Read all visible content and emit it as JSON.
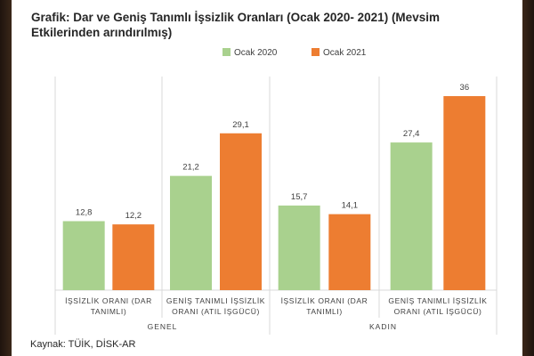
{
  "title": "Grafik: Dar ve Geniş Tanımlı İşsizlik Oranları (Ocak 2020- 2021) (Mevsim Etkilerinden arındırılmış)",
  "source": "Kaynak: TÜİK, DİSK-AR",
  "colors": {
    "series1": "#a9d18e",
    "series2": "#ed7d31",
    "label": "#404040",
    "grid": "#d9d9d9"
  },
  "chart_data": {
    "type": "bar",
    "groups": [
      {
        "label": "GENEL",
        "categories": [
          [
            "İŞSİZLİK ORANI (DAR",
            "TANIMLI)"
          ],
          [
            "GENİŞ TANIMLI İŞSİZLİK",
            "ORANI (ATIL İŞGÜCÜ)"
          ]
        ]
      },
      {
        "label": "KADIN",
        "categories": [
          [
            "İŞSİZLİK ORANI (DAR",
            "TANIMLI)"
          ],
          [
            "GENİŞ TANIMLI İŞSİZLİK",
            "ORANI (ATIL İŞGÜCÜ)"
          ]
        ]
      }
    ],
    "series": [
      {
        "name": "Ocak 2020",
        "values": [
          12.8,
          21.2,
          15.7,
          27.4
        ],
        "labels": [
          "12,8",
          "21,2",
          "15,7",
          "27,4"
        ]
      },
      {
        "name": "Ocak 2021",
        "values": [
          12.2,
          29.1,
          14.1,
          36
        ],
        "labels": [
          "12,2",
          "29,1",
          "14,1",
          "36"
        ]
      }
    ],
    "ylim": [
      0,
      36
    ],
    "grid": false,
    "legend": "top-center"
  }
}
